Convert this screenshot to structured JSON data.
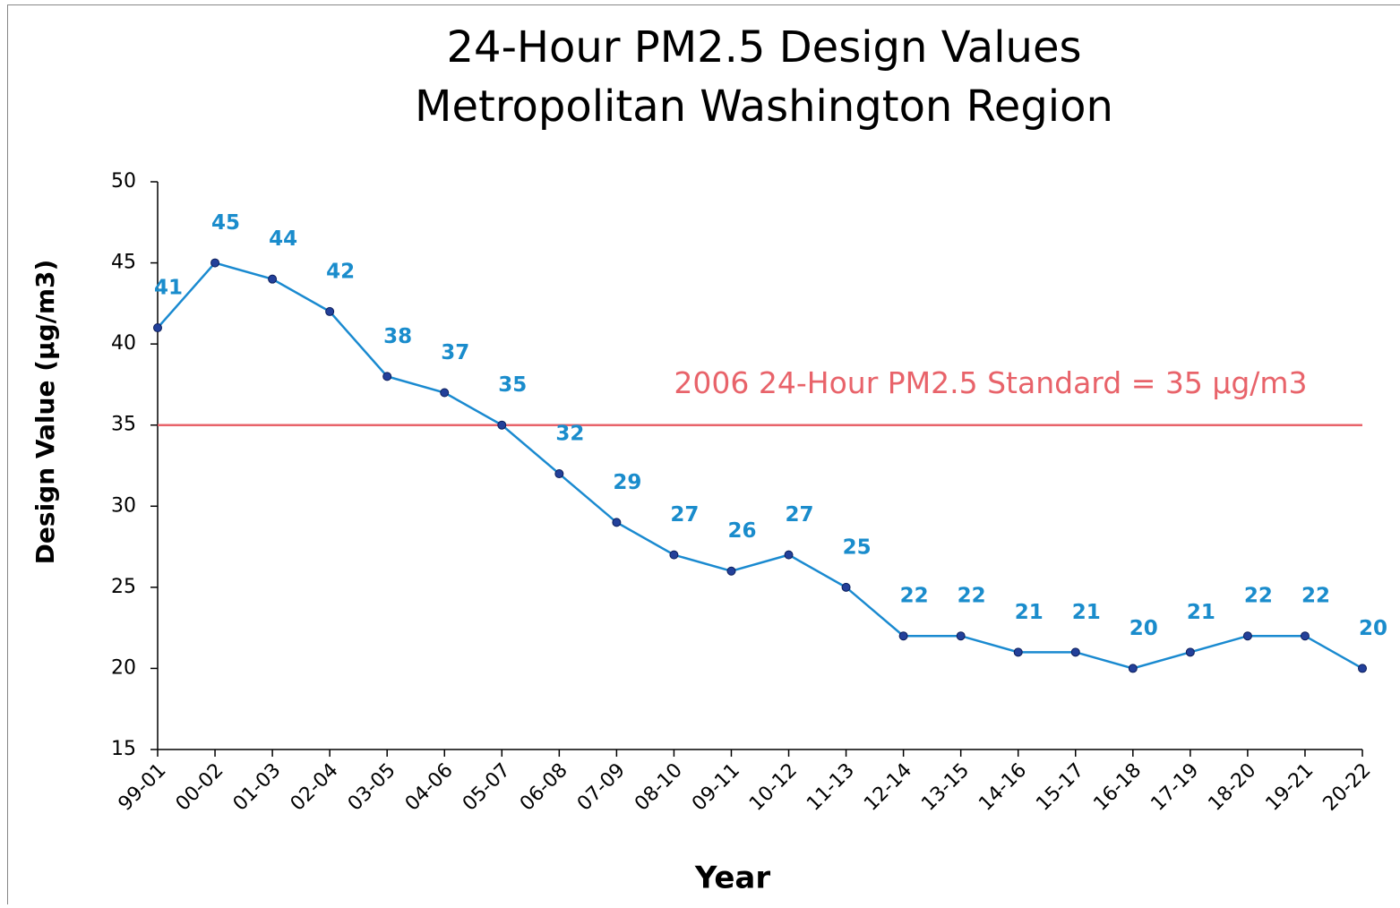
{
  "chart_data": {
    "type": "line",
    "title": "24-Hour PM2.5 Design Values",
    "subtitle": "Metropolitan Washington Region",
    "x_label": "Year",
    "y_label": "Design Value (µg/m3)",
    "categories": [
      "99-01",
      "00-02",
      "01-03",
      "02-04",
      "03-05",
      "04-06",
      "05-07",
      "06-08",
      "07-09",
      "08-10",
      "09-11",
      "10-12",
      "11-13",
      "12-14",
      "13-15",
      "14-16",
      "15-17",
      "16-18",
      "17-19",
      "18-20",
      "19-21",
      "20-22"
    ],
    "values": [
      41,
      45,
      44,
      42,
      38,
      37,
      35,
      32,
      29,
      27,
      26,
      27,
      25,
      22,
      22,
      21,
      21,
      20,
      21,
      22,
      22,
      20
    ],
    "color": "#1a8ad0",
    "marker_color": "#23409a",
    "label_color": "#1a8ccc",
    "ylim": [
      15,
      50
    ],
    "yticks": [
      15,
      20,
      25,
      30,
      35,
      40,
      45,
      50
    ],
    "reference_line": {
      "value": 35,
      "label": "2006 24-Hour PM2.5 Standard = 35 µg/m3",
      "color": "#e8636a"
    }
  }
}
